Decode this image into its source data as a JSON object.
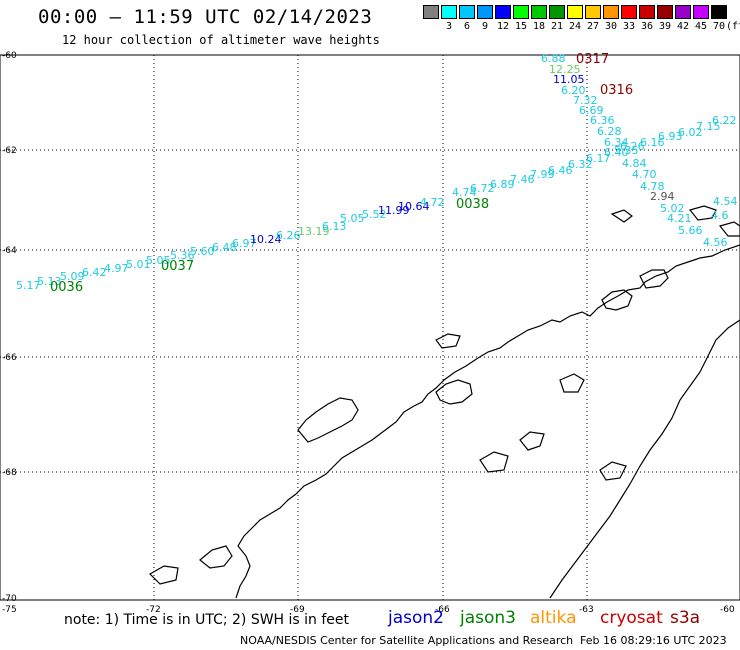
{
  "header": {
    "title": "00:00 – 11:59 UTC 02/14/2023",
    "subtitle": "12 hour collection of altimeter wave heights"
  },
  "legend": {
    "unit": "(ft)",
    "bins": [
      {
        "color": "#808080",
        "label": ""
      },
      {
        "color": "#00ffff",
        "label": "3"
      },
      {
        "color": "#00c8ff",
        "label": "6"
      },
      {
        "color": "#0096ff",
        "label": "9"
      },
      {
        "color": "#0000ff",
        "label": "12"
      },
      {
        "color": "#00ff00",
        "label": "15"
      },
      {
        "color": "#00c800",
        "label": "18"
      },
      {
        "color": "#009600",
        "label": "21"
      },
      {
        "color": "#ffff00",
        "label": "24"
      },
      {
        "color": "#ffc800",
        "label": "27"
      },
      {
        "color": "#ff9600",
        "label": "30"
      },
      {
        "color": "#ff0000",
        "label": "33"
      },
      {
        "color": "#c80000",
        "label": "36"
      },
      {
        "color": "#960000",
        "label": "39"
      },
      {
        "color": "#9600c8",
        "label": "42"
      },
      {
        "color": "#c800ff",
        "label": "45"
      },
      {
        "color": "#000000",
        "label": "70"
      }
    ]
  },
  "axes": {
    "lat_labels": [
      "-60",
      "-62",
      "-64",
      "-66",
      "-68",
      "-70"
    ],
    "lon_labels": [
      "-75",
      "-72",
      "-69",
      "-66",
      "-63",
      "-60"
    ]
  },
  "colors": {
    "cyan": "#1ecbe1",
    "green": "#008000",
    "lightgreen": "#66cc66",
    "blue": "#0000cc",
    "darkred": "#8b0000",
    "gray": "#555555",
    "red": "#cc0000"
  },
  "track_times": [
    "0036",
    "0037",
    "0038",
    "0317",
    "0316"
  ],
  "wave_labels": [
    {
      "v": "5.17",
      "c": "cyan"
    },
    {
      "v": "5.13",
      "c": "cyan"
    },
    {
      "v": "5.09",
      "c": "cyan"
    },
    {
      "v": "6.42",
      "c": "cyan"
    },
    {
      "v": "4.97",
      "c": "cyan"
    },
    {
      "v": "5.01",
      "c": "cyan"
    },
    {
      "v": "5.05",
      "c": "cyan"
    },
    {
      "v": "5.36",
      "c": "cyan"
    },
    {
      "v": "5.60",
      "c": "cyan"
    },
    {
      "v": "6.48",
      "c": "cyan"
    },
    {
      "v": "6.97",
      "c": "cyan"
    },
    {
      "v": "10.24",
      "c": "blue"
    },
    {
      "v": "6.26",
      "c": "cyan"
    },
    {
      "v": "13.19",
      "c": "lightgreen"
    },
    {
      "v": "6.13",
      "c": "cyan"
    },
    {
      "v": "5.05",
      "c": "cyan"
    },
    {
      "v": "5.52",
      "c": "cyan"
    },
    {
      "v": "11.99",
      "c": "blue"
    },
    {
      "v": "10.64",
      "c": "blue"
    },
    {
      "v": "4.72",
      "c": "cyan"
    },
    {
      "v": "4.74",
      "c": "cyan"
    },
    {
      "v": "6.72",
      "c": "cyan"
    },
    {
      "v": "6.89",
      "c": "cyan"
    },
    {
      "v": "7.46",
      "c": "cyan"
    },
    {
      "v": "7.99",
      "c": "cyan"
    },
    {
      "v": "6.46",
      "c": "cyan"
    },
    {
      "v": "6.32",
      "c": "cyan"
    },
    {
      "v": "6.17",
      "c": "cyan"
    },
    {
      "v": "6.40",
      "c": "cyan"
    },
    {
      "v": "6.26",
      "c": "cyan"
    },
    {
      "v": "6.16",
      "c": "cyan"
    },
    {
      "v": "6.93",
      "c": "cyan"
    },
    {
      "v": "6.02",
      "c": "cyan"
    },
    {
      "v": "7.15",
      "c": "cyan"
    },
    {
      "v": "6.22",
      "c": "cyan"
    },
    {
      "v": "6.88",
      "c": "cyan"
    },
    {
      "v": "12.25",
      "c": "lightgreen"
    },
    {
      "v": "11.05",
      "c": "blue"
    },
    {
      "v": "6.20",
      "c": "cyan"
    },
    {
      "v": "7.32",
      "c": "cyan"
    },
    {
      "v": "6.69",
      "c": "cyan"
    },
    {
      "v": "6.36",
      "c": "cyan"
    },
    {
      "v": "6.28",
      "c": "cyan"
    },
    {
      "v": "6.34",
      "c": "cyan"
    },
    {
      "v": "5.35",
      "c": "cyan"
    },
    {
      "v": "4.84",
      "c": "cyan"
    },
    {
      "v": "4.70",
      "c": "cyan"
    },
    {
      "v": "4.78",
      "c": "cyan"
    },
    {
      "v": "2.94",
      "c": "gray"
    },
    {
      "v": "5.02",
      "c": "cyan"
    },
    {
      "v": "4.21",
      "c": "cyan"
    },
    {
      "v": "5.66",
      "c": "cyan"
    },
    {
      "v": "4.56",
      "c": "cyan"
    },
    {
      "v": "4.54",
      "c": "cyan"
    },
    {
      "v": "4.6",
      "c": "cyan"
    }
  ],
  "footer": {
    "note": "note:  1) Time is in UTC;  2) SWH is in feet",
    "satellites": [
      {
        "name": "jason2",
        "color": "#0000cc"
      },
      {
        "name": "jason3",
        "color": "#008000"
      },
      {
        "name": "altika",
        "color": "#ff9600"
      },
      {
        "name": "cryosat",
        "color": "#cc0000"
      },
      {
        "name": "s3a",
        "color": "#8b0000"
      }
    ],
    "credit": "NOAA/NESDIS Center for Satellite Applications and Research",
    "timestamp": "Feb 16 08:29:16 UTC 2023"
  }
}
